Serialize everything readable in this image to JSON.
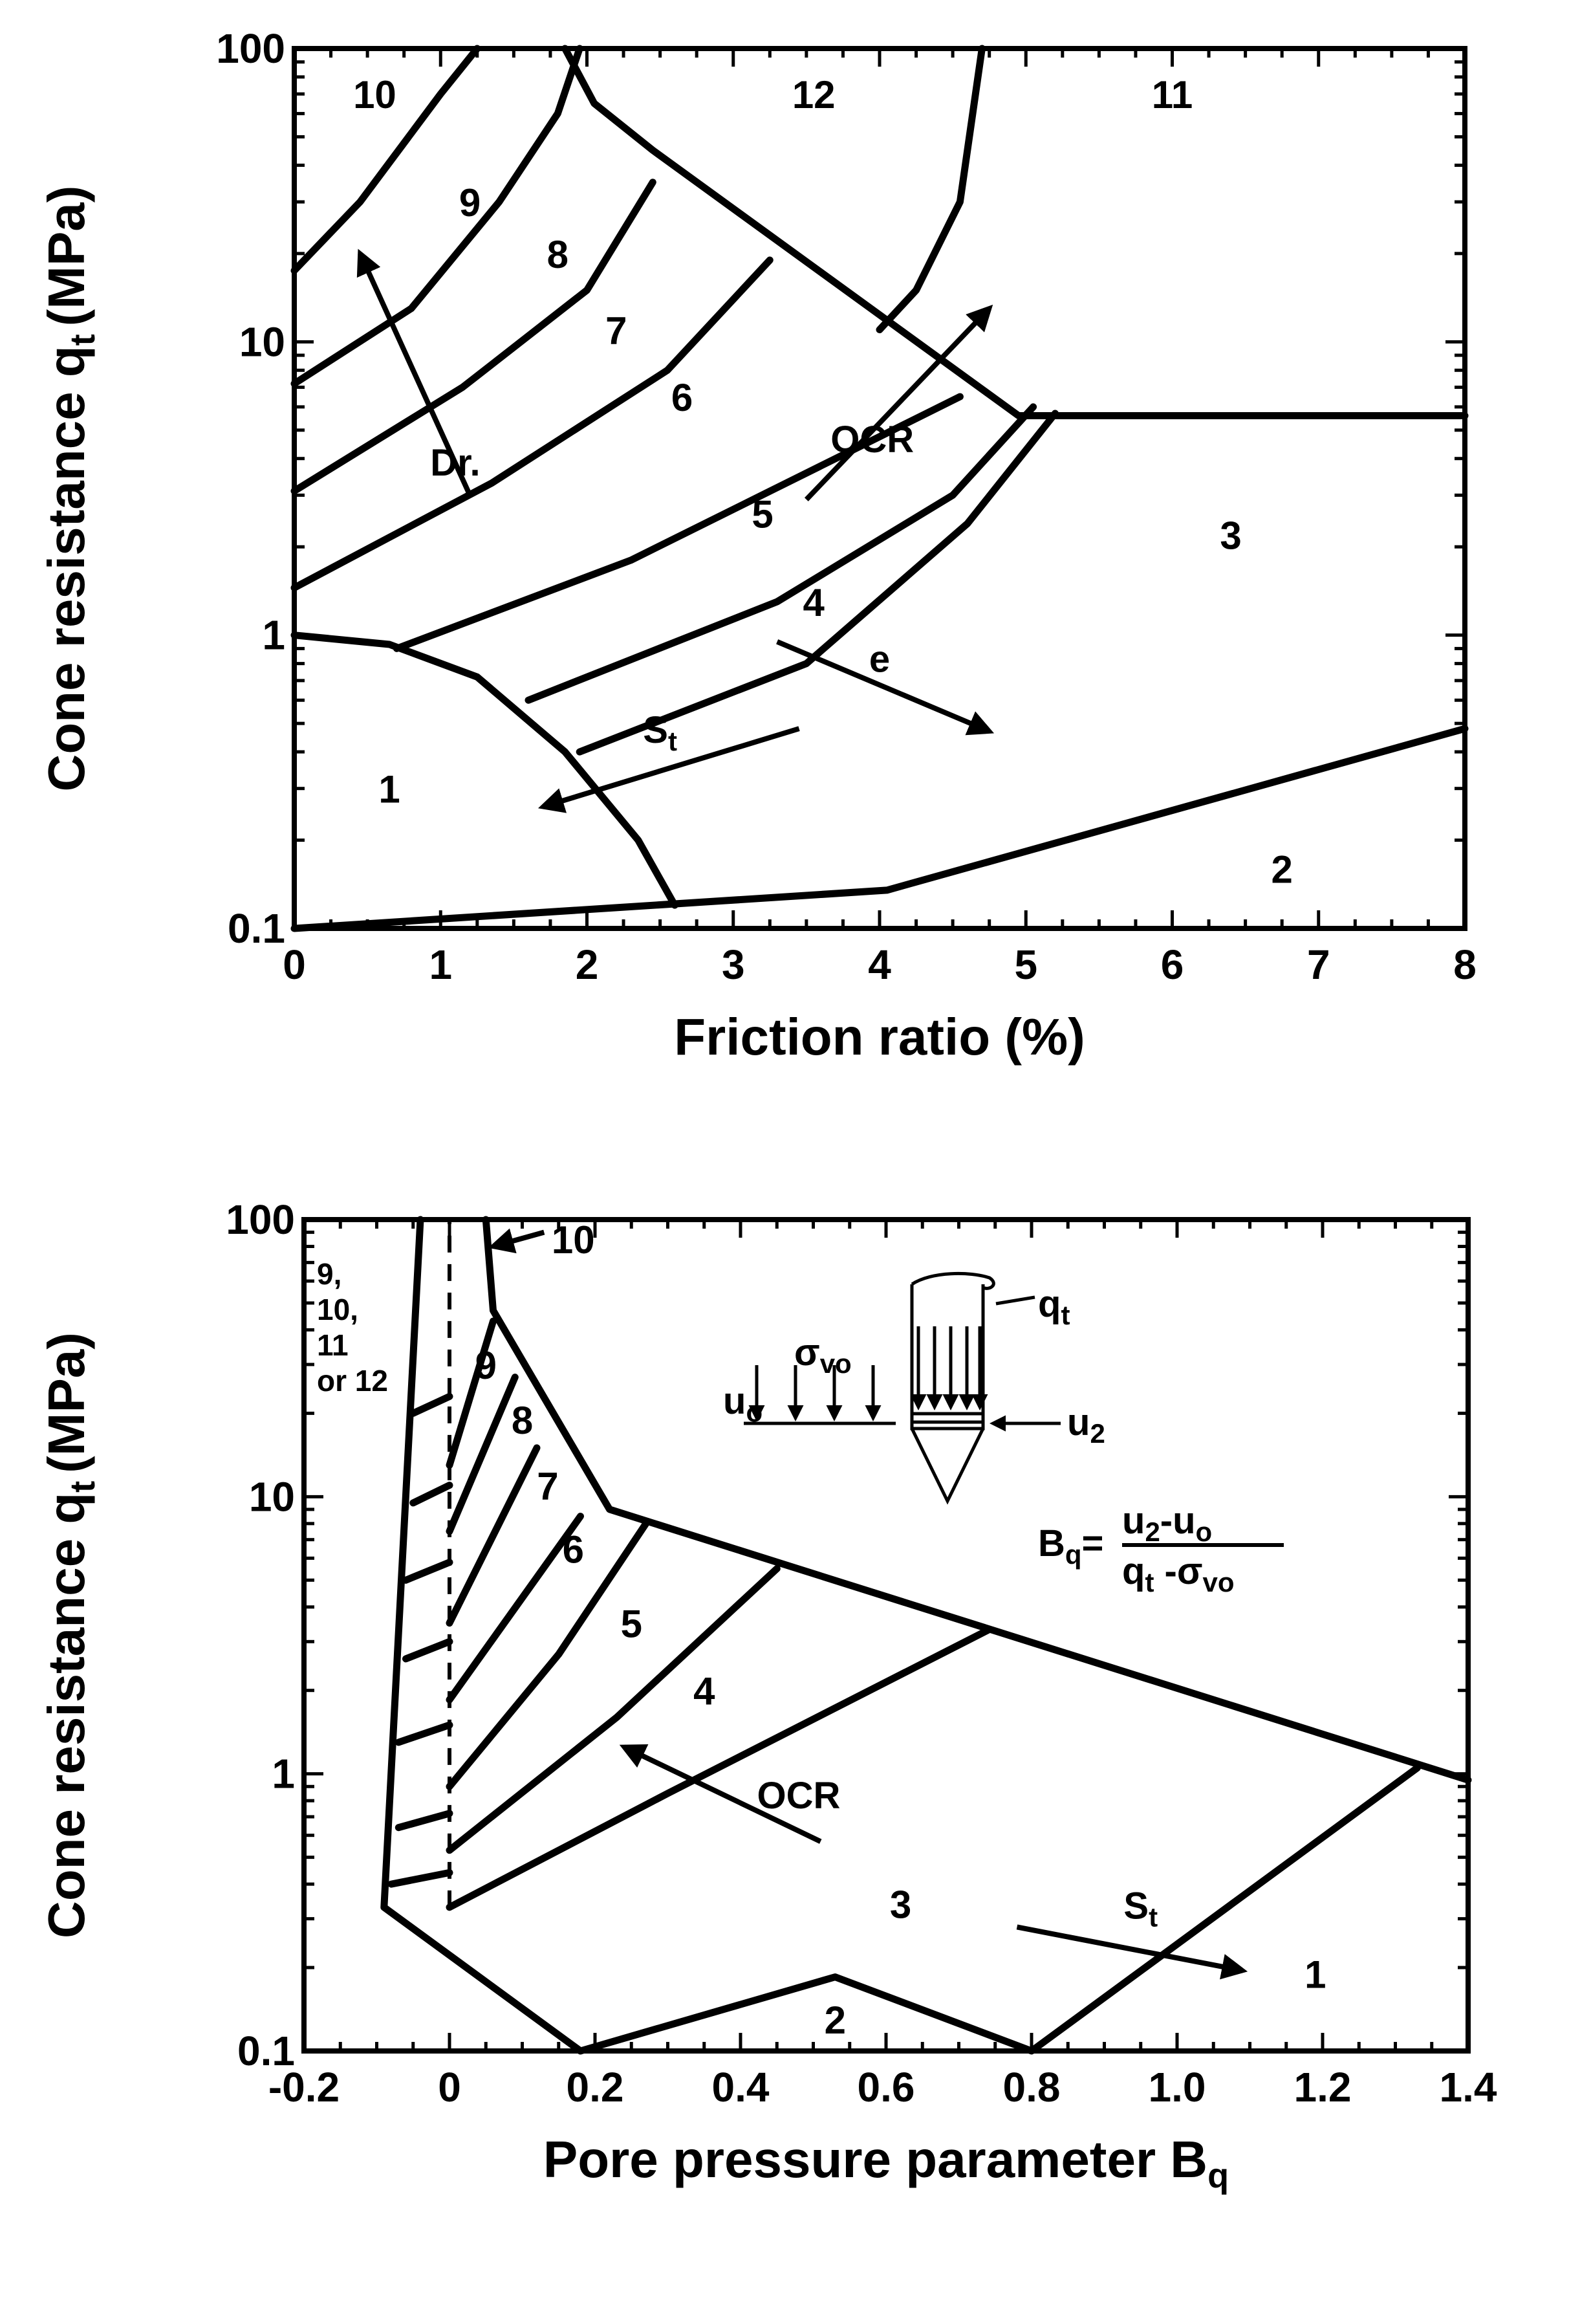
{
  "chart_data": [
    {
      "type": "area",
      "ylabel": "Cone resistance q",
      "ylabel_sub": "t",
      "ylabel_unit": "(MPa)",
      "xlabel": "Friction ratio (%)",
      "xlim": [
        0,
        8
      ],
      "ylim": [
        0.1,
        100
      ],
      "yscale": "log",
      "x_ticks": [
        "0",
        "1",
        "2",
        "3",
        "4",
        "5",
        "6",
        "7",
        "8"
      ],
      "y_ticks": [
        "0.1",
        "1",
        "10",
        "100"
      ],
      "zones": [
        {
          "label": "1",
          "x": 0.65,
          "y": 0.3
        },
        {
          "label": "2",
          "x": 6.75,
          "y": 0.16
        },
        {
          "label": "3",
          "x": 6.4,
          "y": 2.2
        },
        {
          "label": "4",
          "x": 3.55,
          "y": 1.3
        },
        {
          "label": "5",
          "x": 3.2,
          "y": 2.6
        },
        {
          "label": "6",
          "x": 2.65,
          "y": 6.5
        },
        {
          "label": "7",
          "x": 2.2,
          "y": 11
        },
        {
          "label": "8",
          "x": 1.8,
          "y": 20
        },
        {
          "label": "9",
          "x": 1.2,
          "y": 30
        },
        {
          "label": "10",
          "x": 0.55,
          "y": 70
        },
        {
          "label": "11",
          "x": 6.0,
          "y": 70
        },
        {
          "label": "12",
          "x": 3.55,
          "y": 70
        }
      ],
      "boundaries": [
        [
          [
            0,
            0.1
          ],
          [
            4.05,
            0.135
          ],
          [
            8,
            0.48
          ]
        ],
        [
          [
            0,
            1.0
          ],
          [
            0.65,
            0.93
          ],
          [
            1.25,
            0.72
          ],
          [
            1.85,
            0.4
          ],
          [
            2.35,
            0.2
          ],
          [
            2.6,
            0.12
          ]
        ],
        [
          [
            0,
            17.5
          ],
          [
            0.45,
            30
          ],
          [
            1.0,
            70
          ],
          [
            1.25,
            100
          ]
        ],
        [
          [
            0,
            7.2
          ],
          [
            0.8,
            13
          ],
          [
            1.4,
            30
          ],
          [
            1.8,
            60
          ],
          [
            1.95,
            100
          ]
        ],
        [
          [
            0,
            3.1
          ],
          [
            1.15,
            7
          ],
          [
            2.0,
            15
          ],
          [
            2.45,
            35
          ]
        ],
        [
          [
            0,
            1.45
          ],
          [
            1.35,
            3.3
          ],
          [
            2.55,
            8
          ],
          [
            3.25,
            19
          ]
        ],
        [
          [
            0.7,
            0.9
          ],
          [
            2.3,
            1.8
          ],
          [
            3.7,
            4
          ],
          [
            4.55,
            6.5
          ]
        ],
        [
          [
            1.6,
            0.6
          ],
          [
            3.3,
            1.3
          ],
          [
            4.5,
            3
          ],
          [
            5.05,
            6
          ]
        ],
        [
          [
            1.95,
            0.4
          ],
          [
            3.5,
            0.8
          ],
          [
            4.6,
            2.4
          ],
          [
            5.2,
            5.7
          ]
        ],
        [
          [
            1.85,
            100
          ],
          [
            2.05,
            65
          ],
          [
            2.45,
            45
          ],
          [
            4.95,
            5.6
          ],
          [
            8,
            5.6
          ]
        ],
        [
          [
            4.7,
            100
          ],
          [
            4.55,
            30
          ],
          [
            4.25,
            15
          ],
          [
            4.0,
            11
          ]
        ]
      ],
      "annotations": [
        {
          "text": "Dr.",
          "x": 1.1,
          "y": 3.5
        },
        {
          "text": "OCR",
          "x": 3.95,
          "y": 4.2
        },
        {
          "text": "e",
          "x": 4.0,
          "y": 0.75
        },
        {
          "text": "S",
          "sub": "t",
          "x": 2.5,
          "y": 0.43
        }
      ],
      "arrows": [
        {
          "from": [
            1.2,
            3.0
          ],
          "to": [
            0.45,
            20
          ]
        },
        {
          "from": [
            3.5,
            2.9
          ],
          "to": [
            4.75,
            13
          ]
        },
        {
          "from": [
            3.3,
            0.95
          ],
          "to": [
            4.75,
            0.47
          ]
        },
        {
          "from": [
            3.45,
            0.48
          ],
          "to": [
            1.7,
            0.26
          ]
        }
      ]
    },
    {
      "type": "area",
      "ylabel": "Cone resistance q",
      "ylabel_sub": "t",
      "ylabel_unit": "(MPa)",
      "xlabel": "Pore pressure parameter B",
      "xlabel_sub": "q",
      "xlim": [
        -0.2,
        1.4
      ],
      "ylim": [
        0.1,
        100
      ],
      "yscale": "log",
      "x_ticks": [
        "-0.2",
        "0",
        "0.2",
        "0.4",
        "0.6",
        "0.8",
        "1.0",
        "1.2",
        "1.4"
      ],
      "y_ticks": [
        "0.1",
        "1",
        "10",
        "100"
      ],
      "zones": [
        {
          "label": "1",
          "x": 1.19,
          "y": 0.19
        },
        {
          "label": "2",
          "x": 0.53,
          "y": 0.13
        },
        {
          "label": "3",
          "x": 0.62,
          "y": 0.34
        },
        {
          "label": "4",
          "x": 0.35,
          "y": 2.0
        },
        {
          "label": "5",
          "x": 0.25,
          "y": 3.5
        },
        {
          "label": "6",
          "x": 0.17,
          "y": 6.5
        },
        {
          "label": "7",
          "x": 0.135,
          "y": 11
        },
        {
          "label": "8",
          "x": 0.1,
          "y": 19
        },
        {
          "label": "9",
          "x": 0.05,
          "y": 30
        },
        {
          "label": "10",
          "x": 0.17,
          "y": 85
        }
      ],
      "zone_note": [
        "9,",
        "10,",
        "11",
        "or 12"
      ],
      "boundaries": [
        [
          [
            -0.04,
            100
          ],
          [
            -0.09,
            0.33
          ],
          [
            0.18,
            0.1
          ]
        ],
        [
          [
            0.05,
            100
          ],
          [
            0.06,
            47
          ],
          [
            0.22,
            9
          ],
          [
            1.4,
            0.95
          ]
        ],
        [
          [
            0.18,
            0.1
          ],
          [
            0.53,
            0.185
          ],
          [
            0.8,
            0.1
          ],
          [
            1.33,
            1.05
          ]
        ],
        [
          [
            0.0,
            0.33
          ],
          [
            0.3,
            0.85
          ],
          [
            0.74,
            3.3
          ]
        ],
        [
          [
            0.0,
            0.53
          ],
          [
            0.23,
            1.6
          ],
          [
            0.45,
            5.5
          ]
        ],
        [
          [
            0.0,
            0.9
          ],
          [
            0.15,
            2.7
          ],
          [
            0.27,
            8
          ]
        ],
        [
          [
            0.0,
            1.85
          ],
          [
            0.18,
            8.5
          ]
        ],
        [
          [
            0.0,
            3.5
          ],
          [
            0.12,
            15
          ]
        ],
        [
          [
            0.0,
            7.5
          ],
          [
            0.09,
            27
          ]
        ],
        [
          [
            0.0,
            13
          ],
          [
            0.06,
            43
          ]
        ],
        [
          [
            -0.08,
            0.4
          ],
          [
            0.0,
            0.44
          ]
        ],
        [
          [
            -0.07,
            0.64
          ],
          [
            0.0,
            0.72
          ]
        ],
        [
          [
            -0.07,
            1.3
          ],
          [
            0.0,
            1.5
          ]
        ],
        [
          [
            -0.06,
            2.6
          ],
          [
            0.0,
            3.0
          ]
        ],
        [
          [
            -0.06,
            5.0
          ],
          [
            0.0,
            5.8
          ]
        ],
        [
          [
            -0.05,
            9.5
          ],
          [
            0.0,
            11
          ]
        ],
        [
          [
            -0.05,
            20
          ],
          [
            0.0,
            23
          ]
        ]
      ],
      "dashed_line": [
        [
          0,
          0.33
        ],
        [
          0,
          100
        ]
      ],
      "annotations": [
        {
          "text": "OCR",
          "x": 0.48,
          "y": 0.75
        },
        {
          "text": "S",
          "sub": "t",
          "x": 0.95,
          "y": 0.3
        }
      ],
      "arrows": [
        {
          "from": [
            0.51,
            0.57
          ],
          "to": [
            0.24,
            1.25
          ]
        },
        {
          "from": [
            0.78,
            0.28
          ],
          "to": [
            1.09,
            0.195
          ]
        },
        {
          "from": [
            0.13,
            90
          ],
          "to": [
            0.06,
            80
          ]
        }
      ],
      "schematic": {
        "sigma_label": "σ",
        "sigma_sub": "vo",
        "u0_label": "u",
        "u0_sub": "o",
        "qt_label": "q",
        "qt_sub": "t",
        "u2_label": "u",
        "u2_sub": "2",
        "bq_label": "B",
        "bq_sub": "q",
        "bq_equals": "=",
        "num_a": "u",
        "num_a_sub": "2",
        "num_minus": "-u",
        "num_b_sub": "o",
        "den_a": "q",
        "den_a_sub": "t",
        "den_minus": " -σ",
        "den_b_sub": "vo"
      }
    }
  ]
}
